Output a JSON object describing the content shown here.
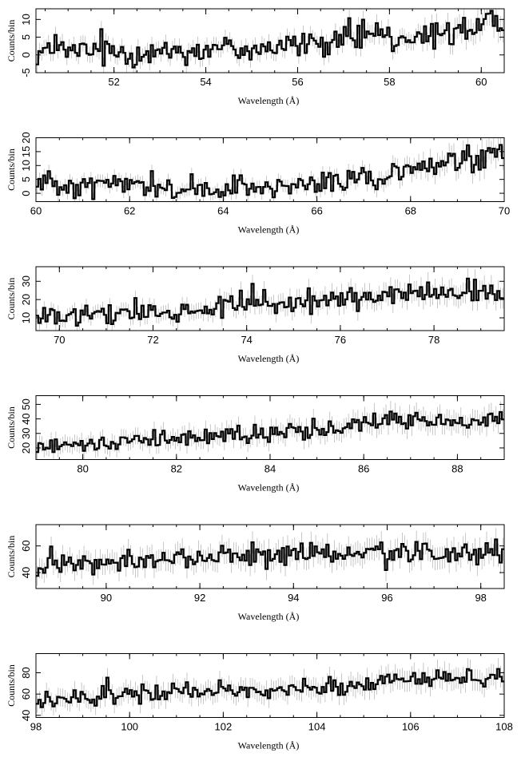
{
  "figure": {
    "background": "#ffffff",
    "line_color": "#000000",
    "error_bar_color": "#b0b0b0"
  },
  "chart_data": [
    {
      "type": "line",
      "style": "step histogram with error bars",
      "xlabel": "Wavelength (Å)",
      "ylabel": "Counts/bin",
      "xlim": [
        50.3,
        60.5
      ],
      "ylim": [
        -5,
        13
      ],
      "xticks": [
        52,
        54,
        56,
        58,
        60
      ],
      "yticks": [
        -5,
        0,
        5,
        10
      ],
      "bin_width": 0.05,
      "trend": [
        [
          50.3,
          1
        ],
        [
          53,
          1
        ],
        [
          55,
          2
        ],
        [
          56.5,
          3
        ],
        [
          57.5,
          5
        ],
        [
          58.5,
          4
        ],
        [
          59.5,
          7
        ],
        [
          60.5,
          9
        ]
      ],
      "noise_amplitude": 4.0
    },
    {
      "type": "line",
      "style": "step histogram with error bars",
      "xlabel": "Wavelength (Å)",
      "ylabel": "Counts/bin",
      "xlim": [
        60,
        70
      ],
      "ylim": [
        -3,
        20
      ],
      "xticks": [
        60,
        62,
        64,
        66,
        68,
        70
      ],
      "yticks": [
        0,
        5,
        10,
        15,
        20
      ],
      "bin_width": 0.05,
      "trend": [
        [
          60,
          4
        ],
        [
          62,
          3
        ],
        [
          63,
          2
        ],
        [
          64.5,
          1
        ],
        [
          66,
          3
        ],
        [
          67.5,
          7
        ],
        [
          68.5,
          10
        ],
        [
          70,
          14
        ]
      ],
      "noise_amplitude": 4.5
    },
    {
      "type": "line",
      "style": "step histogram with error bars",
      "xlabel": "Wavelength (Å)",
      "ylabel": "Counts/bin",
      "xlim": [
        69.5,
        79.5
      ],
      "ylim": [
        3,
        38
      ],
      "xticks": [
        70,
        72,
        74,
        76,
        78
      ],
      "yticks": [
        10,
        20,
        30
      ],
      "bin_width": 0.05,
      "trend": [
        [
          69.5,
          10
        ],
        [
          71,
          11
        ],
        [
          72.5,
          13
        ],
        [
          74,
          18
        ],
        [
          75.5,
          20
        ],
        [
          77,
          22
        ],
        [
          78.5,
          24
        ],
        [
          79.5,
          25
        ]
      ],
      "noise_amplitude": 6.0
    },
    {
      "type": "line",
      "style": "step histogram with error bars",
      "xlabel": "Wavelength (Å)",
      "ylabel": "Counts/bin",
      "xlim": [
        79,
        89
      ],
      "ylim": [
        12,
        56
      ],
      "xticks": [
        80,
        82,
        84,
        86,
        88
      ],
      "yticks": [
        20,
        30,
        40,
        50
      ],
      "bin_width": 0.05,
      "trend": [
        [
          79,
          22
        ],
        [
          81,
          25
        ],
        [
          82.5,
          28
        ],
        [
          84,
          31
        ],
        [
          85.5,
          34
        ],
        [
          86.5,
          40
        ],
        [
          88,
          38
        ],
        [
          89,
          40
        ]
      ],
      "noise_amplitude": 6.0
    },
    {
      "type": "line",
      "style": "step histogram with error bars",
      "xlabel": "Wavelength (Å)",
      "ylabel": "Counts/bin",
      "xlim": [
        88.5,
        98.5
      ],
      "ylim": [
        28,
        76
      ],
      "xticks": [
        90,
        92,
        94,
        96,
        98
      ],
      "yticks": [
        40,
        60
      ],
      "bin_width": 0.05,
      "trend": [
        [
          88.5,
          43
        ],
        [
          90,
          47
        ],
        [
          91.5,
          51
        ],
        [
          93,
          53
        ],
        [
          94.5,
          54
        ],
        [
          96,
          53
        ],
        [
          97.5,
          55
        ],
        [
          98.5,
          56
        ]
      ],
      "noise_amplitude": 8.0
    },
    {
      "type": "line",
      "style": "step histogram with error bars",
      "xlabel": "Wavelength (Å)",
      "ylabel": "Counts/bin",
      "xlim": [
        98,
        108
      ],
      "ylim": [
        38,
        98
      ],
      "xticks": [
        98,
        100,
        102,
        104,
        106,
        108
      ],
      "yticks": [
        40,
        60,
        80
      ],
      "bin_width": 0.05,
      "trend": [
        [
          98,
          52
        ],
        [
          100,
          61
        ],
        [
          102,
          63
        ],
        [
          104,
          66
        ],
        [
          105.5,
          72
        ],
        [
          107,
          76
        ],
        [
          108,
          78
        ]
      ],
      "noise_amplitude": 8.5
    }
  ]
}
